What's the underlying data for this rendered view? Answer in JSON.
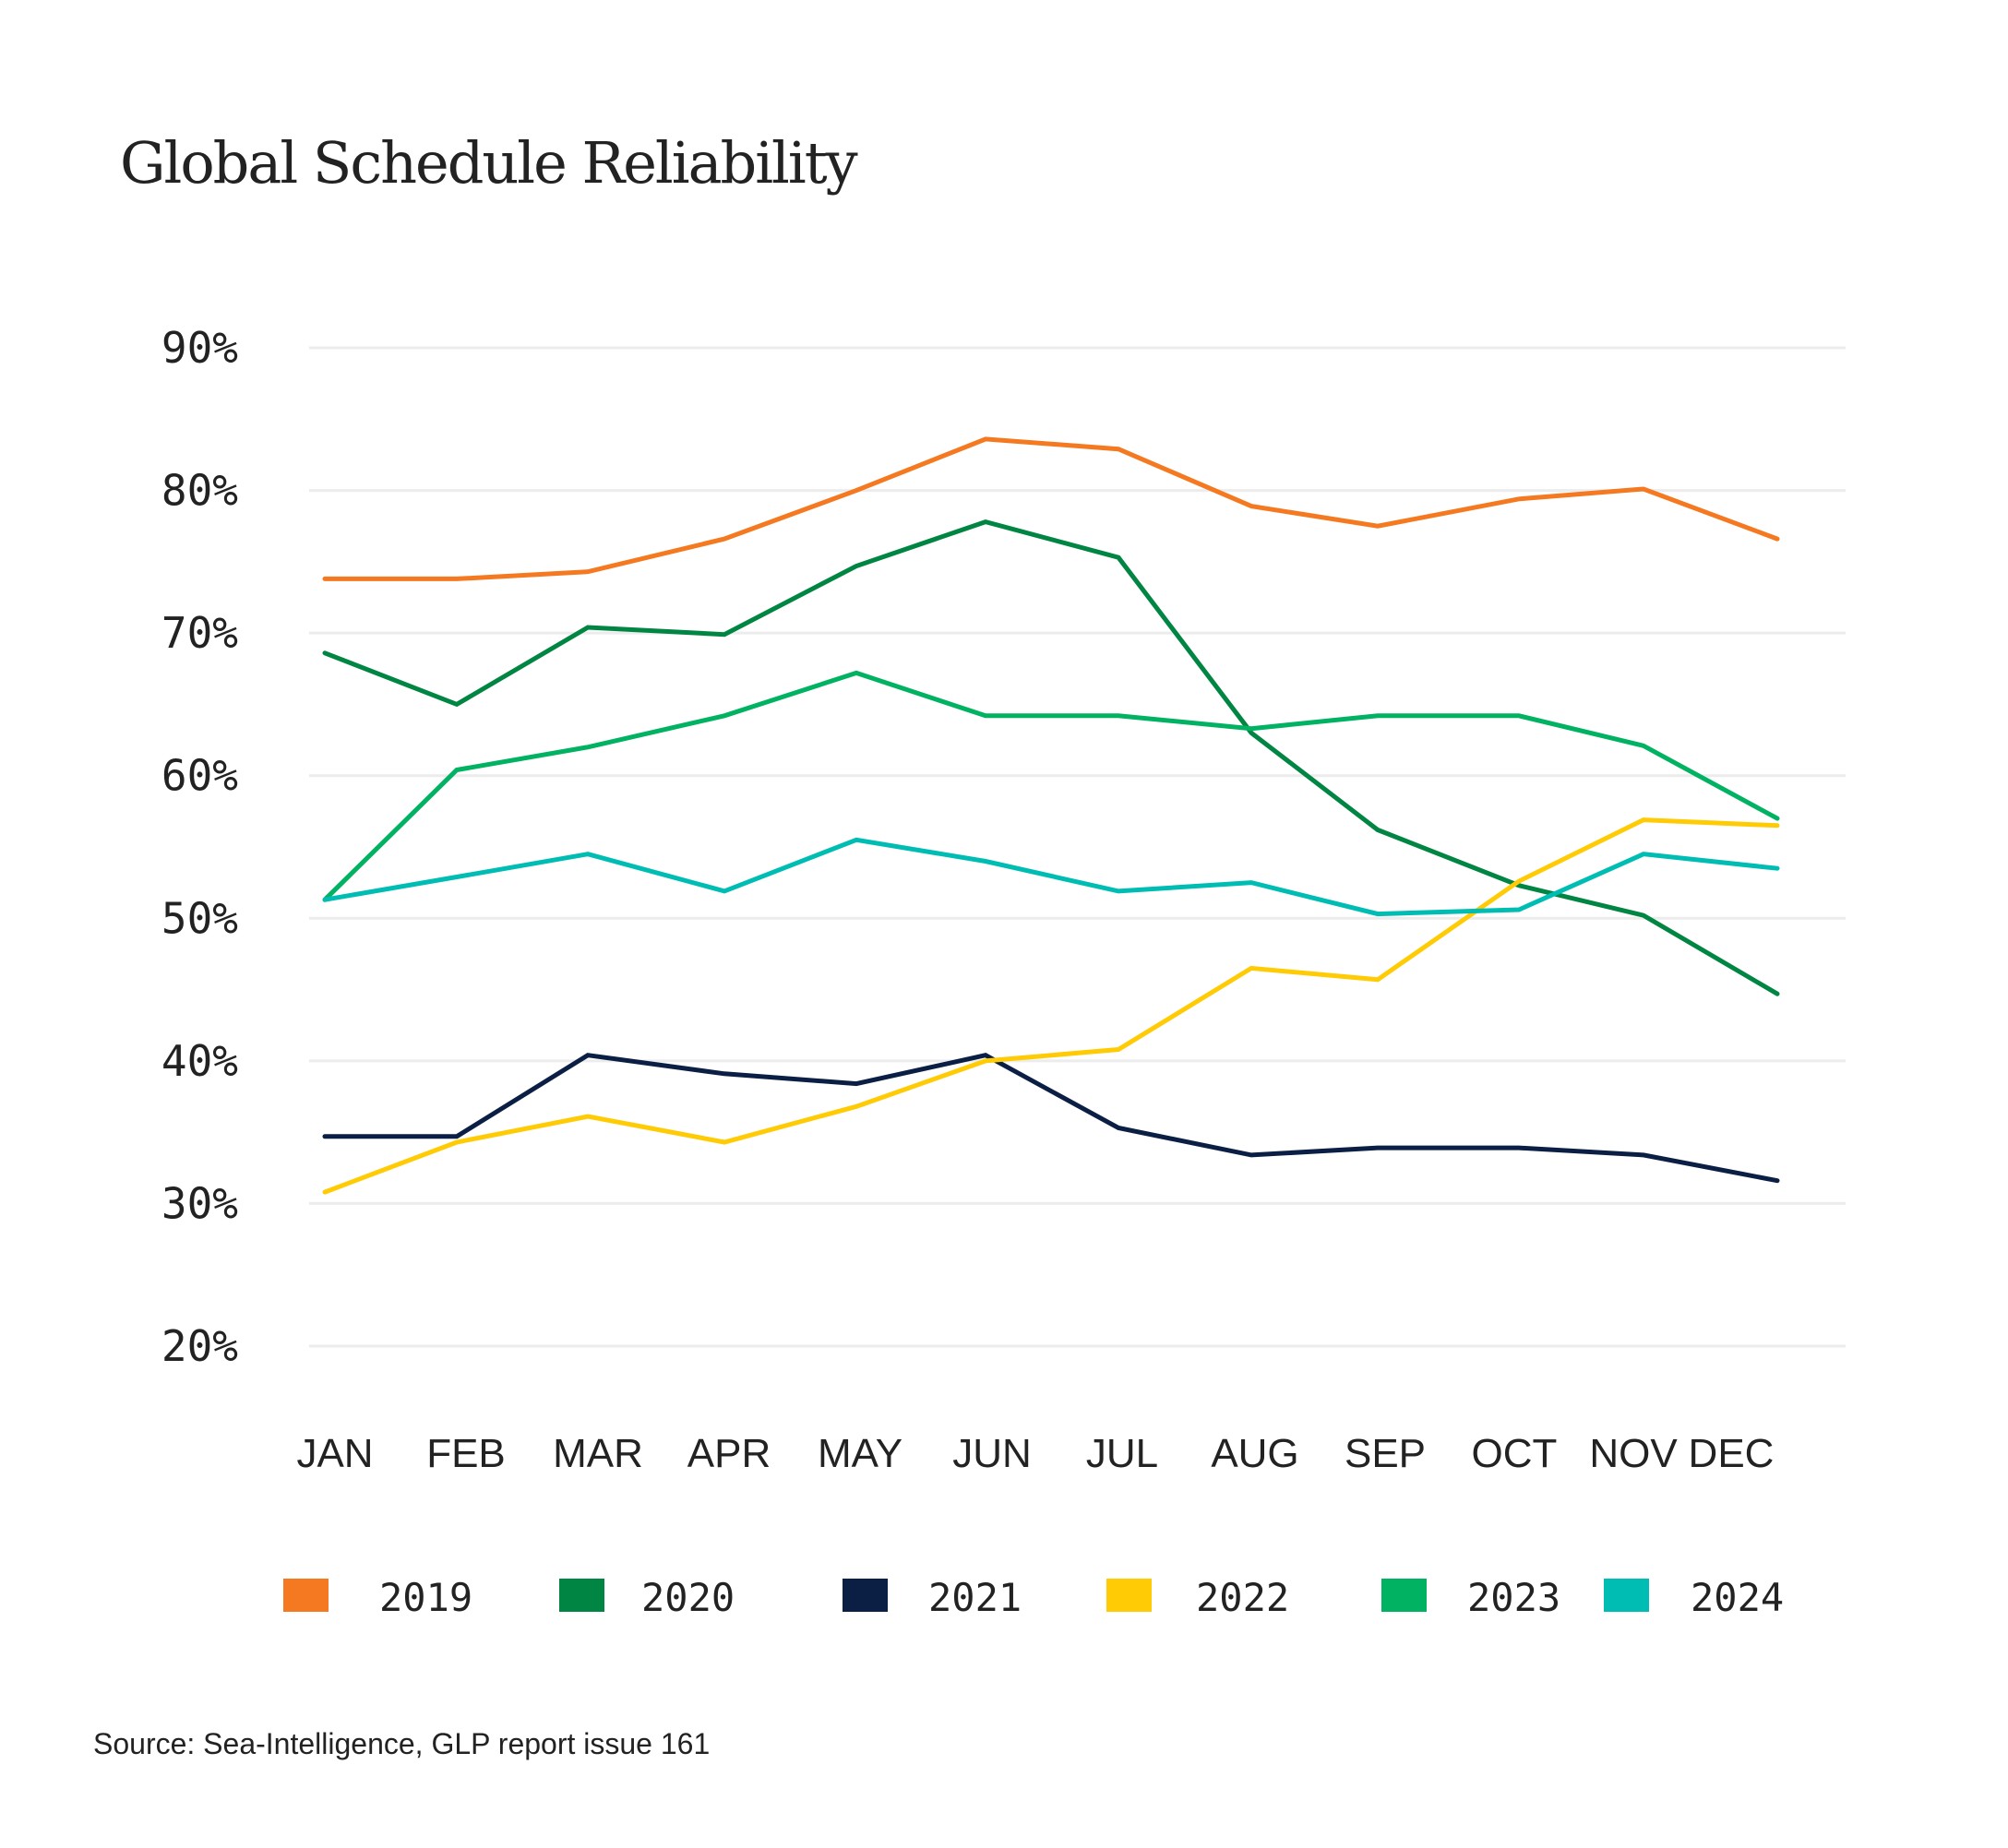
{
  "chart_data": {
    "type": "line",
    "title": "Global Schedule Reliability",
    "source": "Source: Sea-Intelligence, GLP report issue 161",
    "xlabel": "",
    "ylabel": "",
    "categories": [
      "JAN",
      "FEB",
      "MAR",
      "APR",
      "MAY",
      "JUN",
      "JUL",
      "AUG",
      "SEP",
      "OCT",
      "NOV",
      "DEC"
    ],
    "ylim": [
      20,
      90
    ],
    "yticks": [
      90,
      80,
      70,
      60,
      50,
      40,
      30,
      20
    ],
    "ytick_labels": [
      "90%",
      "80%",
      "70%",
      "60%",
      "50%",
      "40%",
      "30%",
      "20%"
    ],
    "grid": true,
    "legend_position": "bottom",
    "series": [
      {
        "name": "2019",
        "color": "#F47920",
        "values": [
          73.8,
          73.8,
          74.3,
          76.6,
          80.0,
          83.6,
          82.9,
          78.9,
          77.5,
          79.4,
          80.1,
          76.6
        ]
      },
      {
        "name": "2020",
        "color": "#008542",
        "values": [
          68.6,
          65.0,
          70.4,
          69.9,
          74.7,
          77.8,
          75.3,
          63.0,
          56.2,
          52.3,
          50.2,
          44.7
        ]
      },
      {
        "name": "2021",
        "color": "#0B1F45",
        "values": [
          34.7,
          34.7,
          40.4,
          39.1,
          38.4,
          40.4,
          35.3,
          33.4,
          33.9,
          33.9,
          33.4,
          31.6
        ]
      },
      {
        "name": "2022",
        "color": "#FFCB05",
        "values": [
          30.8,
          34.3,
          36.1,
          34.3,
          36.8,
          40.0,
          40.8,
          46.5,
          45.7,
          52.6,
          56.9,
          56.5
        ]
      },
      {
        "name": "2023",
        "color": "#00B262",
        "values": [
          51.3,
          60.4,
          62.0,
          64.2,
          67.2,
          64.2,
          64.2,
          63.3,
          64.2,
          64.2,
          62.1,
          57.0
        ]
      },
      {
        "name": "2024",
        "color": "#00BDB4",
        "values": [
          51.3,
          52.9,
          54.5,
          51.9,
          55.5,
          54.0,
          51.9,
          52.5,
          50.3,
          50.6,
          54.5,
          53.5
        ]
      }
    ]
  }
}
